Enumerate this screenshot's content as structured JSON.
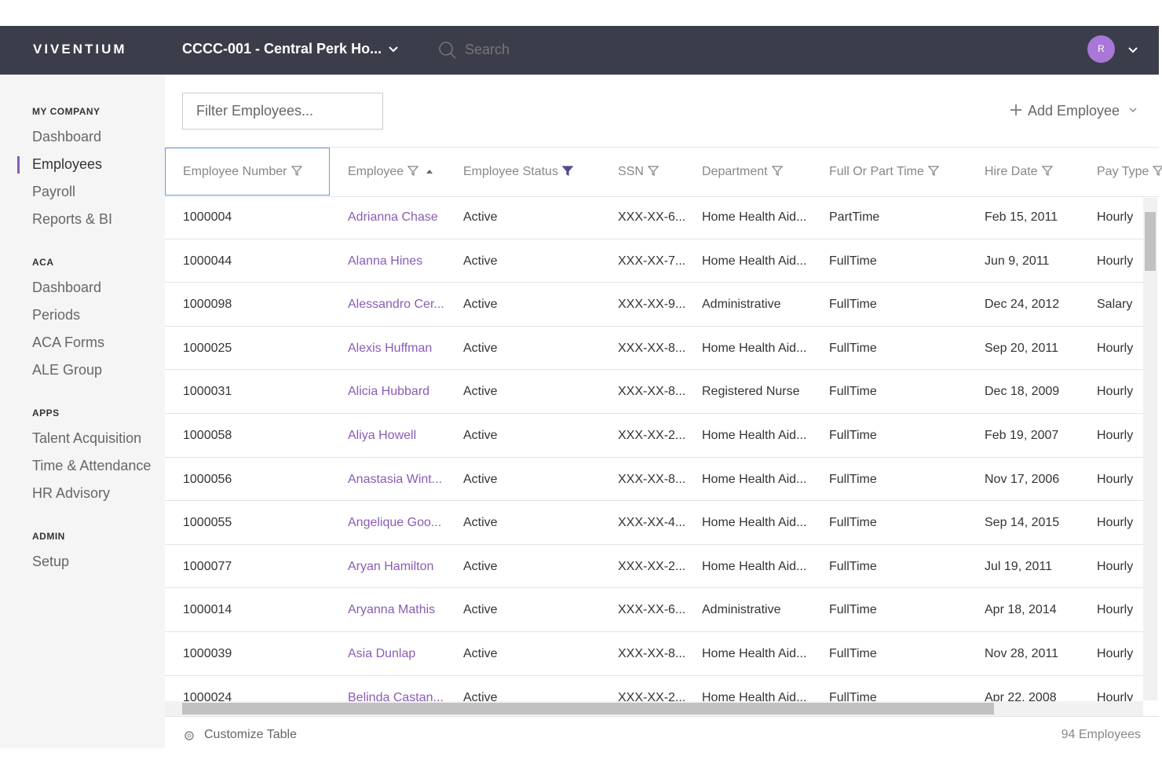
{
  "header": {
    "logo": "VIVENTIUM",
    "company": "CCCC-001 - Central Perk Ho...",
    "search_placeholder": "Search",
    "avatar": "R"
  },
  "sidebar": {
    "sections": [
      {
        "title": "MY COMPANY",
        "items": [
          "Dashboard",
          "Employees",
          "Payroll",
          "Reports & BI"
        ]
      },
      {
        "title": "ACA",
        "items": [
          "Dashboard",
          "Periods",
          "ACA Forms",
          "ALE Group"
        ]
      },
      {
        "title": "APPS",
        "items": [
          "Talent Acquisition",
          "Time & Attendance",
          "HR Advisory"
        ]
      },
      {
        "title": "ADMIN",
        "items": [
          "Setup"
        ]
      }
    ]
  },
  "toolbar": {
    "filter_placeholder": "Filter Employees...",
    "add_button": "Add Employee"
  },
  "table": {
    "columns": [
      "Employee Number",
      "Employee",
      "Employee Status",
      "SSN",
      "Department",
      "Full Or Part Time",
      "Hire Date",
      "Pay Type"
    ],
    "rows": [
      [
        "1000004",
        "Adrianna Chase",
        "Active",
        "XXX-XX-6...",
        "Home Health Aid...",
        "PartTime",
        "Feb 15, 2011",
        "Hourly"
      ],
      [
        "1000044",
        "Alanna Hines",
        "Active",
        "XXX-XX-7...",
        "Home Health Aid...",
        "FullTime",
        "Jun 9, 2011",
        "Hourly"
      ],
      [
        "1000098",
        "Alessandro Cer...",
        "Active",
        "XXX-XX-9...",
        "Administrative",
        "FullTime",
        "Dec 24, 2012",
        "Salary"
      ],
      [
        "1000025",
        "Alexis Huffman",
        "Active",
        "XXX-XX-8...",
        "Home Health Aid...",
        "FullTime",
        "Sep 20, 2011",
        "Hourly"
      ],
      [
        "1000031",
        "Alicia Hubbard",
        "Active",
        "XXX-XX-8...",
        "Registered Nurse",
        "FullTime",
        "Dec 18, 2009",
        "Hourly"
      ],
      [
        "1000058",
        "Aliya Howell",
        "Active",
        "XXX-XX-2...",
        "Home Health Aid...",
        "FullTime",
        "Feb 19, 2007",
        "Hourly"
      ],
      [
        "1000056",
        "Anastasia Wint...",
        "Active",
        "XXX-XX-8...",
        "Home Health Aid...",
        "FullTime",
        "Nov 17, 2006",
        "Hourly"
      ],
      [
        "1000055",
        "Angelique Goo...",
        "Active",
        "XXX-XX-4...",
        "Home Health Aid...",
        "FullTime",
        "Sep 14, 2015",
        "Hourly"
      ],
      [
        "1000077",
        "Aryan Hamilton",
        "Active",
        "XXX-XX-2...",
        "Home Health Aid...",
        "FullTime",
        "Jul 19, 2011",
        "Hourly"
      ],
      [
        "1000014",
        "Aryanna Mathis",
        "Active",
        "XXX-XX-6...",
        "Administrative",
        "FullTime",
        "Apr 18, 2014",
        "Hourly"
      ],
      [
        "1000039",
        "Asia Dunlap",
        "Active",
        "XXX-XX-8...",
        "Home Health Aid...",
        "FullTime",
        "Nov 28, 2011",
        "Hourly"
      ],
      [
        "1000024",
        "Belinda Castan...",
        "Active",
        "XXX-XX-2...",
        "Home Health Aid...",
        "FullTime",
        "Apr 22, 2008",
        "Hourly"
      ]
    ]
  },
  "footer": {
    "customize": "Customize Table",
    "count": "94 Employees"
  }
}
